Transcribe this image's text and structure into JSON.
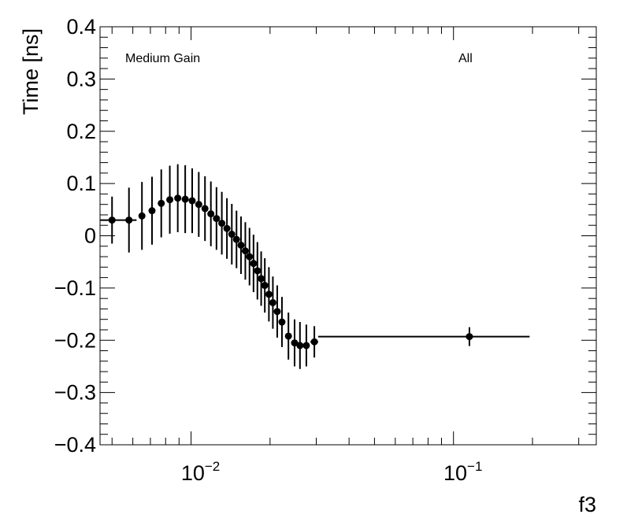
{
  "chart_data": {
    "type": "scatter",
    "xscale": "log",
    "xlim": [
      0.0045,
      0.35
    ],
    "ylim": [
      -0.4,
      0.4
    ],
    "xlabel": "f3",
    "ylabel": "Time [ns]",
    "yticks": [
      -0.4,
      -0.3,
      -0.2,
      -0.1,
      0,
      0.1,
      0.2,
      0.3,
      0.4
    ],
    "ytick_labels": [
      "−0.4",
      "−0.3",
      "−0.2",
      "−0.1",
      "0",
      "0.1",
      "0.2",
      "0.3",
      "0.4"
    ],
    "xticks": [
      0.01,
      0.1
    ],
    "xtick_labels": [
      {
        "base": "10",
        "exp": "−2"
      },
      {
        "base": "10",
        "exp": "−1"
      }
    ],
    "annotations": [
      "Medium Gain",
      "All"
    ],
    "grid": false,
    "series": [
      {
        "marker": "circle",
        "color": "#000000",
        "points": [
          {
            "x": 0.005,
            "y": 0.03,
            "err": 0.045,
            "xlo": 0.0045,
            "xhi": 0.0055
          },
          {
            "x": 0.0058,
            "y": 0.03,
            "err": 0.062,
            "xlo": 0.0055,
            "xhi": 0.0062
          },
          {
            "x": 0.0065,
            "y": 0.038,
            "err": 0.065
          },
          {
            "x": 0.0071,
            "y": 0.048,
            "err": 0.065
          },
          {
            "x": 0.0077,
            "y": 0.062,
            "err": 0.065
          },
          {
            "x": 0.0083,
            "y": 0.069,
            "err": 0.065
          },
          {
            "x": 0.0089,
            "y": 0.072,
            "err": 0.065
          },
          {
            "x": 0.0095,
            "y": 0.07,
            "err": 0.065
          },
          {
            "x": 0.0101,
            "y": 0.067,
            "err": 0.062
          },
          {
            "x": 0.0107,
            "y": 0.06,
            "err": 0.062
          },
          {
            "x": 0.0113,
            "y": 0.052,
            "err": 0.062
          },
          {
            "x": 0.0119,
            "y": 0.042,
            "err": 0.062
          },
          {
            "x": 0.0125,
            "y": 0.033,
            "err": 0.06
          },
          {
            "x": 0.0131,
            "y": 0.024,
            "err": 0.06
          },
          {
            "x": 0.0137,
            "y": 0.014,
            "err": 0.058
          },
          {
            "x": 0.0143,
            "y": 0.003,
            "err": 0.058
          },
          {
            "x": 0.0149,
            "y": -0.007,
            "err": 0.055
          },
          {
            "x": 0.0155,
            "y": -0.018,
            "err": 0.055
          },
          {
            "x": 0.0161,
            "y": -0.029,
            "err": 0.055
          },
          {
            "x": 0.0167,
            "y": -0.04,
            "err": 0.055
          },
          {
            "x": 0.0173,
            "y": -0.053,
            "err": 0.055
          },
          {
            "x": 0.0179,
            "y": -0.067,
            "err": 0.055
          },
          {
            "x": 0.0185,
            "y": -0.082,
            "err": 0.052
          },
          {
            "x": 0.0191,
            "y": -0.095,
            "err": 0.052
          },
          {
            "x": 0.0198,
            "y": -0.112,
            "err": 0.052
          },
          {
            "x": 0.0205,
            "y": -0.128,
            "err": 0.05
          },
          {
            "x": 0.0213,
            "y": -0.145,
            "err": 0.05
          },
          {
            "x": 0.0222,
            "y": -0.165,
            "err": 0.048
          },
          {
            "x": 0.0235,
            "y": -0.192,
            "err": 0.045
          },
          {
            "x": 0.0248,
            "y": -0.205,
            "err": 0.045
          },
          {
            "x": 0.026,
            "y": -0.21,
            "err": 0.045
          },
          {
            "x": 0.0275,
            "y": -0.21,
            "err": 0.04
          },
          {
            "x": 0.0295,
            "y": -0.203,
            "err": 0.03,
            "xlo": 0.0285,
            "xhi": 0.0305
          },
          {
            "x": 0.115,
            "y": -0.193,
            "err": 0.018,
            "xlo": 0.0305,
            "xhi": 0.195
          }
        ]
      }
    ]
  }
}
